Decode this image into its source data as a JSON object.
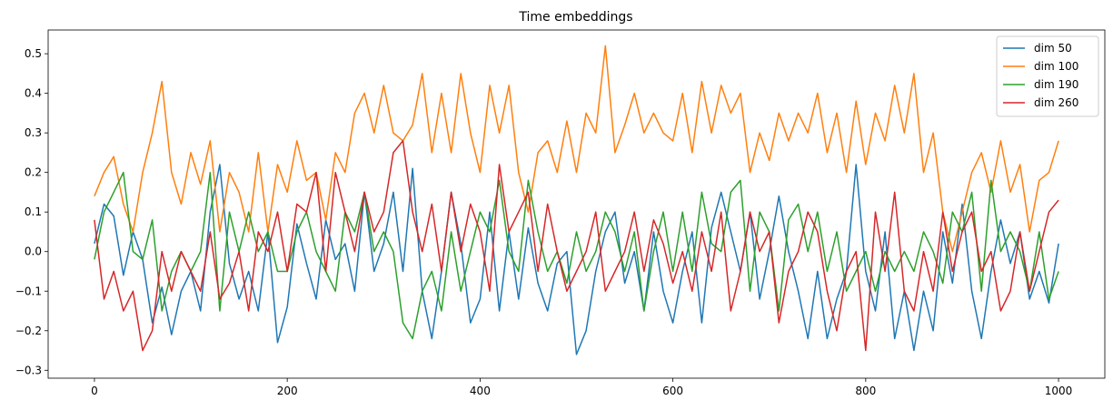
{
  "chart_data": {
    "type": "line",
    "title": "Time embeddings",
    "xlabel": "",
    "ylabel": "",
    "xlim": [
      -48,
      1048
    ],
    "ylim": [
      -0.32,
      0.56
    ],
    "xticks": [
      0,
      200,
      400,
      600,
      800,
      1000
    ],
    "xtick_labels": [
      "0",
      "200",
      "400",
      "600",
      "800",
      "1000"
    ],
    "yticks": [
      -0.3,
      -0.2,
      -0.1,
      0.0,
      0.1,
      0.2,
      0.3,
      0.4,
      0.5
    ],
    "ytick_labels": [
      "−0.3",
      "−0.2",
      "−0.1",
      "0.0",
      "0.1",
      "0.2",
      "0.3",
      "0.4",
      "0.5"
    ],
    "grid": false,
    "legend_position": "top-right",
    "series": [
      {
        "name": "dim 50",
        "color": "#1f77b4",
        "x": [
          0,
          10,
          20,
          30,
          40,
          50,
          60,
          70,
          80,
          90,
          100,
          110,
          120,
          130,
          140,
          150,
          160,
          170,
          180,
          190,
          200,
          210,
          220,
          230,
          240,
          250,
          260,
          270,
          280,
          290,
          300,
          310,
          320,
          330,
          340,
          350,
          360,
          370,
          380,
          390,
          400,
          410,
          420,
          430,
          440,
          450,
          460,
          470,
          480,
          490,
          500,
          510,
          520,
          530,
          540,
          550,
          560,
          570,
          580,
          590,
          600,
          610,
          620,
          630,
          640,
          650,
          660,
          670,
          680,
          690,
          700,
          710,
          720,
          730,
          740,
          750,
          760,
          770,
          780,
          790,
          800,
          810,
          820,
          830,
          840,
          850,
          860,
          870,
          880,
          890,
          900,
          910,
          920,
          930,
          940,
          950,
          960,
          970,
          980,
          990,
          1000
        ],
        "y": [
          0.02,
          0.12,
          0.09,
          -0.06,
          0.05,
          -0.02,
          -0.18,
          -0.09,
          -0.21,
          -0.1,
          -0.05,
          -0.15,
          0.1,
          0.22,
          -0.03,
          -0.12,
          -0.05,
          -0.15,
          0.05,
          -0.23,
          -0.14,
          0.07,
          -0.03,
          -0.12,
          0.08,
          -0.02,
          0.02,
          -0.1,
          0.15,
          -0.05,
          0.02,
          0.15,
          -0.05,
          0.21,
          -0.1,
          -0.22,
          -0.05,
          0.15,
          0.02,
          -0.18,
          -0.12,
          0.1,
          -0.15,
          0.05,
          -0.12,
          0.06,
          -0.08,
          -0.15,
          -0.03,
          0.0,
          -0.26,
          -0.2,
          -0.05,
          0.05,
          0.1,
          -0.08,
          0.0,
          -0.15,
          0.05,
          -0.1,
          -0.18,
          -0.05,
          0.05,
          -0.18,
          0.06,
          0.15,
          0.05,
          -0.05,
          0.1,
          -0.12,
          0.0,
          0.14,
          0.0,
          -0.1,
          -0.22,
          -0.05,
          -0.22,
          -0.12,
          -0.05,
          0.22,
          -0.05,
          -0.15,
          0.05,
          -0.22,
          -0.1,
          -0.25,
          -0.1,
          -0.2,
          0.05,
          -0.08,
          0.12,
          -0.1,
          -0.22,
          -0.05,
          0.08,
          -0.03,
          0.05,
          -0.12,
          -0.05,
          -0.13,
          0.02
        ]
      },
      {
        "name": "dim 100",
        "color": "#ff7f0e",
        "x": [
          0,
          10,
          20,
          30,
          40,
          50,
          60,
          70,
          80,
          90,
          100,
          110,
          120,
          130,
          140,
          150,
          160,
          170,
          180,
          190,
          200,
          210,
          220,
          230,
          240,
          250,
          260,
          270,
          280,
          290,
          300,
          310,
          320,
          330,
          340,
          350,
          360,
          370,
          380,
          390,
          400,
          410,
          420,
          430,
          440,
          450,
          460,
          470,
          480,
          490,
          500,
          510,
          520,
          530,
          540,
          550,
          560,
          570,
          580,
          590,
          600,
          610,
          620,
          630,
          640,
          650,
          660,
          670,
          680,
          690,
          700,
          710,
          720,
          730,
          740,
          750,
          760,
          770,
          780,
          790,
          800,
          810,
          820,
          830,
          840,
          850,
          860,
          870,
          880,
          890,
          900,
          910,
          920,
          930,
          940,
          950,
          960,
          970,
          980,
          990,
          1000
        ],
        "y": [
          0.14,
          0.2,
          0.24,
          0.12,
          0.05,
          0.2,
          0.3,
          0.43,
          0.2,
          0.12,
          0.25,
          0.17,
          0.28,
          0.05,
          0.2,
          0.15,
          0.05,
          0.25,
          0.05,
          0.22,
          0.15,
          0.28,
          0.18,
          0.2,
          0.08,
          0.25,
          0.2,
          0.35,
          0.4,
          0.3,
          0.42,
          0.3,
          0.28,
          0.32,
          0.45,
          0.25,
          0.4,
          0.25,
          0.45,
          0.3,
          0.2,
          0.42,
          0.3,
          0.42,
          0.2,
          0.1,
          0.25,
          0.28,
          0.2,
          0.33,
          0.2,
          0.35,
          0.3,
          0.52,
          0.25,
          0.32,
          0.4,
          0.3,
          0.35,
          0.3,
          0.28,
          0.4,
          0.25,
          0.43,
          0.3,
          0.42,
          0.35,
          0.4,
          0.2,
          0.3,
          0.23,
          0.35,
          0.28,
          0.35,
          0.3,
          0.4,
          0.25,
          0.35,
          0.2,
          0.38,
          0.22,
          0.35,
          0.28,
          0.42,
          0.3,
          0.45,
          0.2,
          0.3,
          0.1,
          0.0,
          0.1,
          0.2,
          0.25,
          0.15,
          0.28,
          0.15,
          0.22,
          0.05,
          0.18,
          0.2,
          0.28
        ]
      },
      {
        "name": "dim 190",
        "color": "#2ca02c",
        "x": [
          0,
          10,
          20,
          30,
          40,
          50,
          60,
          70,
          80,
          90,
          100,
          110,
          120,
          130,
          140,
          150,
          160,
          170,
          180,
          190,
          200,
          210,
          220,
          230,
          240,
          250,
          260,
          270,
          280,
          290,
          300,
          310,
          320,
          330,
          340,
          350,
          360,
          370,
          380,
          390,
          400,
          410,
          420,
          430,
          440,
          450,
          460,
          470,
          480,
          490,
          500,
          510,
          520,
          530,
          540,
          550,
          560,
          570,
          580,
          590,
          600,
          610,
          620,
          630,
          640,
          650,
          660,
          670,
          680,
          690,
          700,
          710,
          720,
          730,
          740,
          750,
          760,
          770,
          780,
          790,
          800,
          810,
          820,
          830,
          840,
          850,
          860,
          870,
          880,
          890,
          900,
          910,
          920,
          930,
          940,
          950,
          960,
          970,
          980,
          990,
          1000
        ],
        "y": [
          -0.02,
          0.1,
          0.15,
          0.2,
          0.0,
          -0.02,
          0.08,
          -0.15,
          -0.05,
          0.0,
          -0.05,
          0.0,
          0.2,
          -0.15,
          0.1,
          0.0,
          0.1,
          0.0,
          0.05,
          -0.05,
          -0.05,
          0.05,
          0.1,
          0.0,
          -0.05,
          -0.1,
          0.1,
          0.05,
          0.15,
          0.0,
          0.05,
          0.0,
          -0.18,
          -0.22,
          -0.1,
          -0.05,
          -0.15,
          0.05,
          -0.1,
          0.0,
          0.1,
          0.05,
          0.18,
          0.0,
          -0.05,
          0.18,
          0.05,
          -0.05,
          0.0,
          -0.08,
          0.05,
          -0.05,
          0.0,
          0.1,
          0.05,
          -0.05,
          0.05,
          -0.15,
          0.0,
          0.1,
          -0.05,
          0.1,
          -0.05,
          0.15,
          0.02,
          0.0,
          0.15,
          0.18,
          -0.1,
          0.1,
          0.05,
          -0.15,
          0.08,
          0.12,
          0.0,
          0.1,
          -0.05,
          0.05,
          -0.1,
          -0.05,
          0.0,
          -0.1,
          0.0,
          -0.05,
          0.0,
          -0.05,
          0.05,
          0.0,
          -0.08,
          0.1,
          0.05,
          0.15,
          -0.1,
          0.18,
          0.0,
          0.05,
          0.0,
          -0.1,
          0.05,
          -0.12,
          -0.05
        ]
      },
      {
        "name": "dim 260",
        "color": "#d62728",
        "x": [
          0,
          10,
          20,
          30,
          40,
          50,
          60,
          70,
          80,
          90,
          100,
          110,
          120,
          130,
          140,
          150,
          160,
          170,
          180,
          190,
          200,
          210,
          220,
          230,
          240,
          250,
          260,
          270,
          280,
          290,
          300,
          310,
          320,
          330,
          340,
          350,
          360,
          370,
          380,
          390,
          400,
          410,
          420,
          430,
          440,
          450,
          460,
          470,
          480,
          490,
          500,
          510,
          520,
          530,
          540,
          550,
          560,
          570,
          580,
          590,
          600,
          610,
          620,
          630,
          640,
          650,
          660,
          670,
          680,
          690,
          700,
          710,
          720,
          730,
          740,
          750,
          760,
          770,
          780,
          790,
          800,
          810,
          820,
          830,
          840,
          850,
          860,
          870,
          880,
          890,
          900,
          910,
          920,
          930,
          940,
          950,
          960,
          970,
          980,
          990,
          1000
        ],
        "y": [
          0.08,
          -0.12,
          -0.05,
          -0.15,
          -0.1,
          -0.25,
          -0.2,
          0.0,
          -0.1,
          0.0,
          -0.05,
          -0.1,
          0.05,
          -0.12,
          -0.08,
          0.0,
          -0.15,
          0.05,
          0.0,
          0.1,
          -0.05,
          0.12,
          0.1,
          0.2,
          -0.05,
          0.2,
          0.1,
          0.0,
          0.15,
          0.05,
          0.1,
          0.25,
          0.28,
          0.1,
          0.0,
          0.12,
          -0.05,
          0.15,
          0.0,
          0.12,
          0.05,
          -0.1,
          0.22,
          0.05,
          0.1,
          0.15,
          -0.05,
          0.12,
          0.0,
          -0.1,
          -0.05,
          0.0,
          0.1,
          -0.1,
          -0.05,
          0.0,
          0.1,
          -0.05,
          0.08,
          0.02,
          -0.08,
          0.0,
          -0.1,
          0.05,
          -0.05,
          0.1,
          -0.15,
          -0.05,
          0.1,
          0.0,
          0.05,
          -0.18,
          -0.05,
          0.0,
          0.1,
          0.05,
          -0.1,
          -0.2,
          -0.05,
          0.0,
          -0.25,
          0.1,
          -0.05,
          0.15,
          -0.1,
          -0.15,
          0.0,
          -0.1,
          0.1,
          -0.05,
          0.05,
          0.1,
          -0.05,
          0.0,
          -0.15,
          -0.1,
          0.05,
          -0.1,
          0.0,
          0.1,
          0.13
        ]
      }
    ]
  }
}
